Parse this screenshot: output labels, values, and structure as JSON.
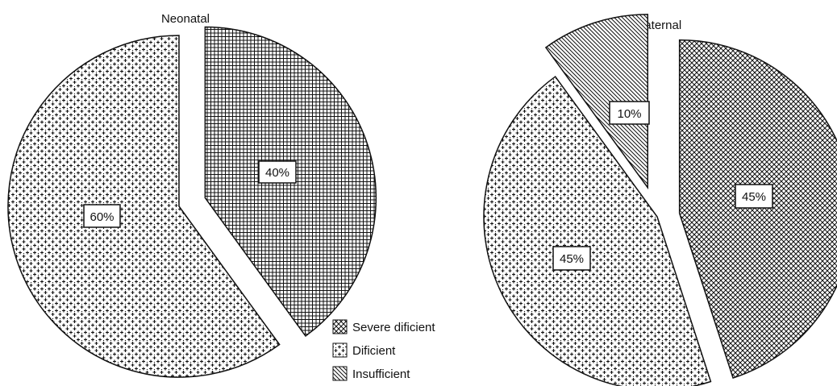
{
  "chart_data": [
    {
      "type": "pie",
      "title": "Neonatal",
      "slices": [
        {
          "name": "Severe dificient",
          "value": 40,
          "label": "40%",
          "pattern": "grid-fine"
        },
        {
          "name": "Dificient",
          "value": 60,
          "label": "60%",
          "pattern": "plus-cross"
        }
      ]
    },
    {
      "type": "pie",
      "title": "Maternal",
      "slices": [
        {
          "name": "Severe dificient",
          "value": 45,
          "label": "45%",
          "pattern": "crosshatch"
        },
        {
          "name": "Dificient",
          "value": 45,
          "label": "45%",
          "pattern": "plus-cross"
        },
        {
          "name": "Insufficient",
          "value": 10,
          "label": "10%",
          "pattern": "diagonal"
        }
      ]
    }
  ],
  "legend": {
    "placement": "bottom-center",
    "items": [
      {
        "label": "Severe dificient",
        "pattern": "crosshatch"
      },
      {
        "label": "Dificient",
        "pattern": "plus-cross"
      },
      {
        "label": "Insufficient",
        "pattern": "diagonal"
      }
    ]
  },
  "colors": {
    "ink": "#111111",
    "background": "#ffffff"
  }
}
